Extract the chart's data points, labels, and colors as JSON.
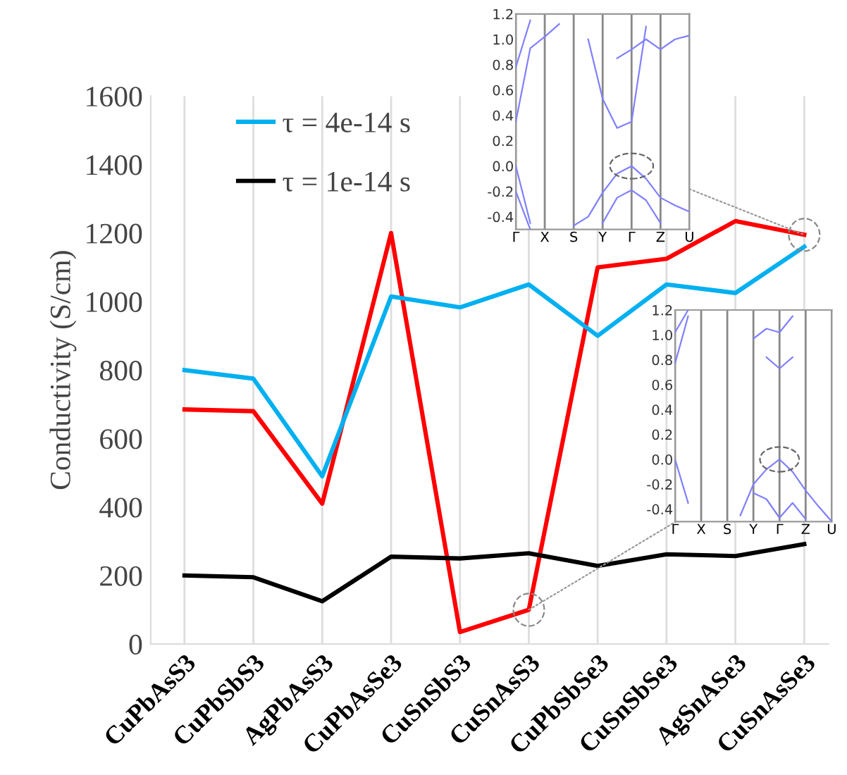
{
  "chart_data": [
    {
      "type": "line",
      "ylabel": "Conductivity (S/cm)",
      "categories": [
        "CuPbAsS3",
        "CuPbSbS3",
        "AgPbAsS3",
        "CuPbAsSe3",
        "CuSnSbS3",
        "CuSnAsS3",
        "CuPbSbSe3",
        "CuSnSbSe3",
        "AgSnASe3",
        "CuSnAsSe3"
      ],
      "series": [
        {
          "color": "#ff0000",
          "values": [
            685,
            680,
            410,
            1200,
            35,
            100,
            1100,
            1125,
            1235,
            1195
          ]
        },
        {
          "name": "τ = 4e-14 s",
          "color": "#00b0f0",
          "values": [
            800,
            775,
            490,
            1015,
            983,
            1050,
            900,
            1050,
            1025,
            1160
          ]
        },
        {
          "name": "τ = 1e-14 s",
          "color": "#000000",
          "values": [
            200,
            195,
            125,
            255,
            250,
            265,
            228,
            262,
            257,
            292
          ]
        }
      ],
      "ylim": [
        0,
        1600
      ],
      "yticks": [
        0,
        200,
        400,
        600,
        800,
        1000,
        1200,
        1400,
        1600
      ],
      "grid": "x",
      "legend": "top left"
    },
    {
      "type": "line",
      "ylim": [
        -0.5,
        1.2
      ],
      "categories": [
        "Γ",
        null,
        "X",
        null,
        "S",
        null,
        "Y",
        null,
        "Γ",
        null,
        "Z",
        null,
        "U"
      ],
      "yticks": [
        {
          "value": -0.4,
          "label": "-0.4"
        },
        {
          "value": -0.2,
          "label": "-0.2"
        },
        {
          "value": 0,
          "label": "0.0"
        },
        {
          "value": 0.2,
          "label": "0.2"
        },
        {
          "value": 0.4,
          "label": "0.4"
        },
        {
          "value": 0.6,
          "label": "0.6"
        },
        {
          "value": 0.8,
          "label": "0.8"
        },
        {
          "value": 1.0,
          "label": "1.0"
        },
        {
          "value": 1.2,
          "label": "1.2"
        }
      ],
      "grid": "x",
      "series": [
        {
          "color": "#8080ff",
          "values": [
            null,
            null,
            null,
            null,
            -0.47,
            -0.4,
            -0.21,
            -0.06,
            0.0,
            -0.1,
            -0.25,
            -0.31,
            -0.36
          ]
        },
        {
          "color": "#8080ff",
          "values": [
            null,
            null,
            null,
            null,
            null,
            null,
            -0.45,
            -0.25,
            -0.19,
            -0.27,
            -0.45,
            null,
            null
          ]
        },
        {
          "color": "#8080ff",
          "values": [
            0.0,
            -0.45,
            null,
            null,
            null,
            null,
            null,
            null,
            null,
            null,
            null,
            null,
            null
          ]
        },
        {
          "color": "#8080ff",
          "values": [
            -0.2,
            -0.5,
            null,
            null,
            null,
            null,
            null,
            null,
            null,
            null,
            null,
            null,
            null
          ]
        },
        {
          "color": "#8080ff",
          "values": [
            0.35,
            0.93,
            1.02,
            1.12,
            null,
            null,
            null,
            null,
            null,
            null,
            null,
            null,
            null
          ]
        },
        {
          "color": "#8080ff",
          "values": [
            0.78,
            1.15,
            null,
            null,
            null,
            null,
            null,
            null,
            null,
            null,
            null,
            null,
            null
          ]
        },
        {
          "color": "#8080ff",
          "values": [
            null,
            null,
            null,
            null,
            null,
            1.0,
            0.53,
            0.3,
            0.35,
            1.1,
            null,
            null,
            null
          ]
        },
        {
          "color": "#8080ff",
          "values": [
            null,
            null,
            null,
            null,
            null,
            null,
            null,
            0.85,
            0.92,
            1.0,
            0.92,
            1.0,
            1.03
          ]
        }
      ]
    },
    {
      "type": "line",
      "ylim": [
        -0.5,
        1.2
      ],
      "categories": [
        "Γ",
        null,
        "X",
        null,
        "S",
        null,
        "Y",
        null,
        "Γ",
        null,
        "Z",
        null,
        "U"
      ],
      "yticks": [
        {
          "value": -0.4,
          "label": "-0.4"
        },
        {
          "value": -0.2,
          "label": "-0.2"
        },
        {
          "value": 0,
          "label": "0.0"
        },
        {
          "value": 0.2,
          "label": "0.2"
        },
        {
          "value": 0.4,
          "label": "0.4"
        },
        {
          "value": 0.6,
          "label": "0.6"
        },
        {
          "value": 0.8,
          "label": "0.8"
        },
        {
          "value": 1.0,
          "label": "1.0"
        },
        {
          "value": 1.2,
          "label": "1.2"
        }
      ],
      "grid": "x",
      "series": [
        {
          "color": "#8080ff",
          "values": [
            0.0,
            -0.35,
            null,
            null,
            null,
            null,
            null,
            null,
            null,
            null,
            null,
            null,
            null
          ]
        },
        {
          "color": "#8080ff",
          "values": [
            null,
            null,
            null,
            null,
            null,
            -0.45,
            -0.2,
            -0.08,
            0.0,
            -0.1,
            -0.25,
            -0.38,
            -0.5
          ]
        },
        {
          "color": "#8080ff",
          "values": [
            null,
            null,
            null,
            null,
            null,
            null,
            -0.27,
            -0.32,
            -0.47,
            -0.35,
            -0.48,
            null,
            null
          ]
        },
        {
          "color": "#8080ff",
          "values": [
            1.02,
            1.2,
            null,
            null,
            null,
            null,
            null,
            null,
            null,
            null,
            null,
            null,
            null
          ]
        },
        {
          "color": "#8080ff",
          "values": [
            0.77,
            1.15,
            null,
            null,
            null,
            null,
            null,
            null,
            null,
            null,
            null,
            null,
            null
          ]
        },
        {
          "color": "#8080ff",
          "values": [
            null,
            null,
            null,
            null,
            null,
            null,
            null,
            0.82,
            0.73,
            0.82,
            null,
            null,
            null
          ]
        },
        {
          "color": "#8080ff",
          "values": [
            null,
            null,
            null,
            null,
            null,
            null,
            0.97,
            1.05,
            1.02,
            1.15,
            null,
            null,
            null
          ]
        }
      ]
    }
  ]
}
